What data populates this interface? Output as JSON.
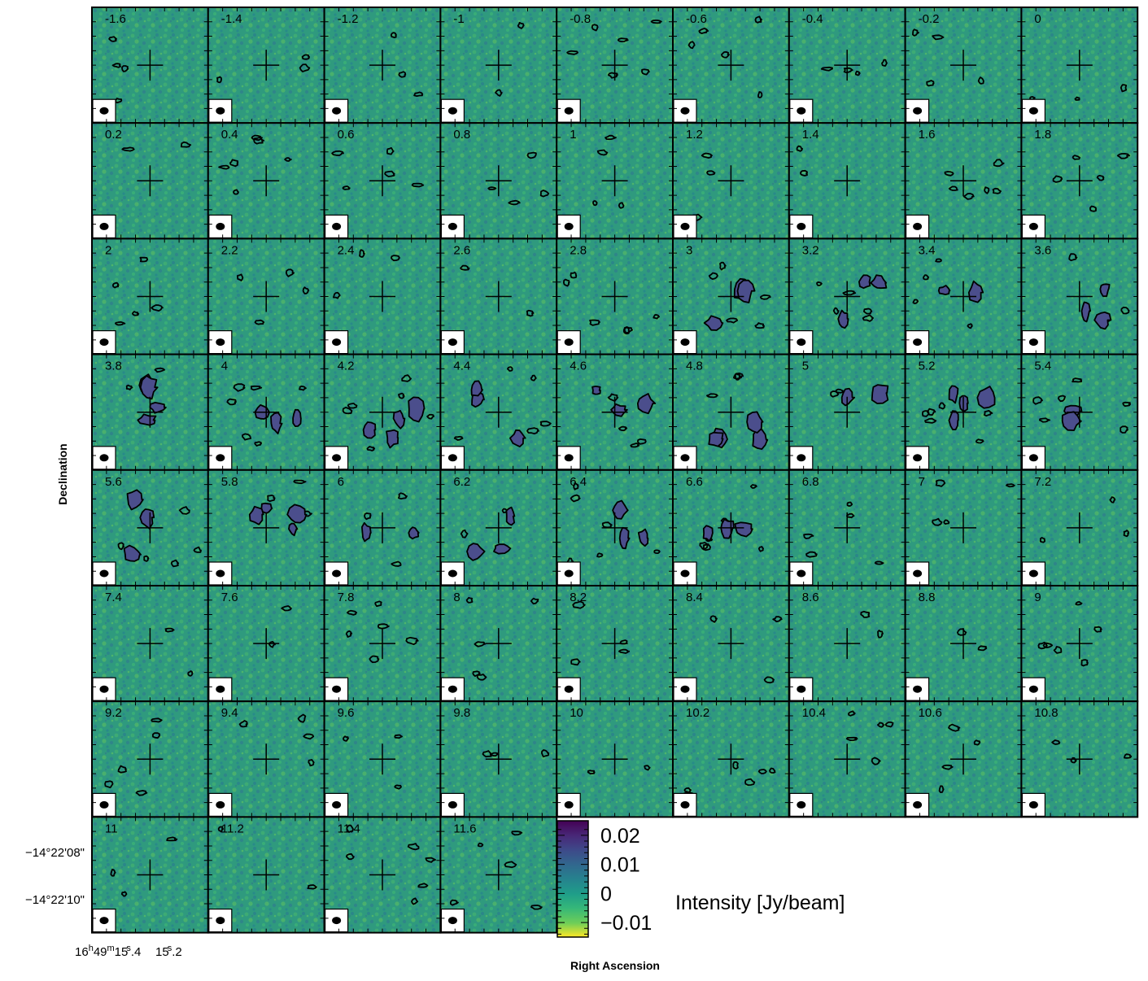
{
  "chart_data": {
    "type": "heatmap",
    "description_kind": "channel-map grid",
    "panels": [
      "-1.6",
      "-1.4",
      "-1.2",
      "-1",
      "-0.8",
      "-0.6",
      "-0.4",
      "-0.2",
      "0",
      "0.2",
      "0.4",
      "0.6",
      "0.8",
      "1",
      "1.2",
      "1.4",
      "1.6",
      "1.8",
      "2",
      "2.2",
      "2.4",
      "2.6",
      "2.8",
      "3",
      "3.2",
      "3.4",
      "3.6",
      "3.8",
      "4",
      "4.2",
      "4.4",
      "4.6",
      "4.8",
      "5",
      "5.2",
      "5.4",
      "5.6",
      "5.8",
      "6",
      "6.2",
      "6.4",
      "6.6",
      "6.8",
      "7",
      "7.2",
      "7.4",
      "7.6",
      "7.8",
      "8",
      "8.2",
      "8.4",
      "8.6",
      "8.8",
      "9",
      "9.2",
      "9.4",
      "9.6",
      "9.8",
      "10",
      "10.2",
      "10.4",
      "10.6",
      "10.8",
      "11",
      "11.2",
      "11.4",
      "11.6"
    ],
    "grid": {
      "columns": 9,
      "rows": 8
    },
    "emission_channels": [
      "3",
      "3.2",
      "3.4",
      "3.6",
      "3.8",
      "4",
      "4.2",
      "4.4",
      "4.6",
      "4.8",
      "5",
      "5.2",
      "5.4",
      "5.6",
      "5.8",
      "6",
      "6.2",
      "6.4",
      "6.6"
    ],
    "xlabel": "Right Ascension",
    "ylabel": "Declination",
    "x_ticks": [
      {
        "h": "16",
        "m": "49",
        "s": "15",
        "frac": ".4"
      },
      {
        "h": "",
        "m": "",
        "s": "15",
        "frac": ".2"
      }
    ],
    "y_ticks": [
      "−14°22'08\"",
      "−14°22'10\""
    ],
    "colorbar": {
      "label": "Intensity [Jy/beam]",
      "ticks": [
        "0.02",
        "0.01",
        "0",
        "−0.01"
      ],
      "range": [
        -0.015,
        0.025
      ],
      "colormap": "viridis (reversed)"
    },
    "colors": {
      "background_field": "#2f9a7e",
      "contour": "#000000",
      "contour_fill": "#4b4e8c",
      "cbar_top": "#440154",
      "cbar_bottom": "#fde725"
    },
    "markers": {
      "cross": "source position",
      "beam": "beam ellipse (lower-left inset)"
    }
  }
}
